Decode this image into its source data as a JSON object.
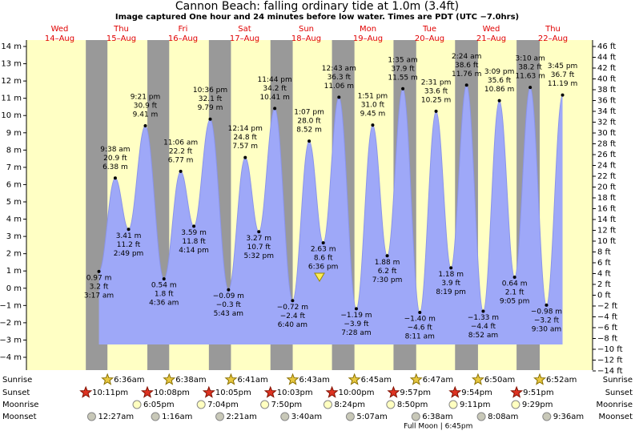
{
  "chart_data": {
    "type": "tide",
    "title": "Cannon Beach: falling  ordinary tide at 1.0m (3.4ft)",
    "subtitle": "Image captured One hour and 24 minutes before low water. Times are PDT (UTC −7.0hrs)",
    "ylim": [
      -4,
      14
    ],
    "yticks": [
      {
        "value": -4,
        "label": "−4 m"
      },
      {
        "value": -3,
        "label": "−3 m"
      },
      {
        "value": -2,
        "label": "−2 m"
      },
      {
        "value": -1,
        "label": "−1 m"
      },
      {
        "value": 0,
        "label": "0 m"
      },
      {
        "value": 1,
        "label": "1 m"
      },
      {
        "value": 2,
        "label": "2 m"
      },
      {
        "value": 3,
        "label": "3 m"
      },
      {
        "value": 4,
        "label": "4 m"
      },
      {
        "value": 5,
        "label": "5 m"
      },
      {
        "value": 6,
        "label": "6 m"
      },
      {
        "value": 7,
        "label": "7 m"
      },
      {
        "value": 8,
        "label": "8 m"
      },
      {
        "value": 9,
        "label": "9 m"
      },
      {
        "value": 10,
        "label": "10 m"
      },
      {
        "value": 11,
        "label": "11 m"
      },
      {
        "value": 12,
        "label": "12 m"
      },
      {
        "value": 13,
        "label": "13 m"
      },
      {
        "value": 14,
        "label": "14 m"
      }
    ],
    "y2lim": [
      -14,
      46
    ],
    "y2ticks": [
      {
        "value": -14,
        "label": "−14 ft"
      },
      {
        "value": -12,
        "label": "−12 ft"
      },
      {
        "value": -10,
        "label": "−10 ft"
      },
      {
        "value": -8,
        "label": "−8 ft"
      },
      {
        "value": -6,
        "label": "−6 ft"
      },
      {
        "value": -4,
        "label": "−4 ft"
      },
      {
        "value": -2,
        "label": "−2 ft"
      },
      {
        "value": 0,
        "label": "0 ft"
      },
      {
        "value": 2,
        "label": "2 ft"
      },
      {
        "value": 4,
        "label": "4 ft"
      },
      {
        "value": 6,
        "label": "6 ft"
      },
      {
        "value": 8,
        "label": "8 ft"
      },
      {
        "value": 10,
        "label": "10 ft"
      },
      {
        "value": 12,
        "label": "12 ft"
      },
      {
        "value": 14,
        "label": "14 ft"
      },
      {
        "value": 16,
        "label": "16 ft"
      },
      {
        "value": 18,
        "label": "18 ft"
      },
      {
        "value": 20,
        "label": "20 ft"
      },
      {
        "value": 22,
        "label": "22 ft"
      },
      {
        "value": 24,
        "label": "24 ft"
      },
      {
        "value": 26,
        "label": "26 ft"
      },
      {
        "value": 28,
        "label": "28 ft"
      },
      {
        "value": 30,
        "label": "30 ft"
      },
      {
        "value": 32,
        "label": "32 ft"
      },
      {
        "value": 34,
        "label": "34 ft"
      },
      {
        "value": 36,
        "label": "36 ft"
      },
      {
        "value": 38,
        "label": "38 ft"
      },
      {
        "value": 40,
        "label": "40 ft"
      },
      {
        "value": 42,
        "label": "42 ft"
      },
      {
        "value": 44,
        "label": "44 ft"
      },
      {
        "value": 46,
        "label": "46 ft"
      }
    ],
    "row_labels": {
      "sunrise": "Sunrise",
      "sunset": "Sunset",
      "moonrise": "Moonrise",
      "moonset": "Moonset"
    },
    "days": [
      {
        "weekday": "Wed",
        "date": "14–Aug",
        "sunset": "10:11pm"
      },
      {
        "weekday": "Thu",
        "date": "15–Aug",
        "sunrise": "6:36am",
        "sunset": "10:08pm",
        "moonrise": "6:05pm",
        "moonset": "12:27am",
        "tides": [
          {
            "time": "3:17 am",
            "value": 0.97,
            "value_label": "0.97 m",
            "ft_label": "3.2 ft"
          },
          {
            "time": "9:38 am",
            "value": 6.38,
            "value_label": "6.38 m",
            "ft_label": "20.9 ft"
          },
          {
            "time": "2:49 pm",
            "value": 3.41,
            "value_label": "3.41 m",
            "ft_label": "11.2 ft"
          },
          {
            "time": "9:21 pm",
            "value": 9.41,
            "value_label": "9.41 m",
            "ft_label": "30.9 ft"
          }
        ]
      },
      {
        "weekday": "Fri",
        "date": "16–Aug",
        "sunrise": "6:38am",
        "sunset": "10:05pm",
        "moonrise": "7:04pm",
        "moonset": "1:16am",
        "tides": [
          {
            "time": "4:36 am",
            "value": 0.54,
            "value_label": "0.54 m",
            "ft_label": "1.8 ft"
          },
          {
            "time": "11:06 am",
            "value": 6.77,
            "value_label": "6.77 m",
            "ft_label": "22.2 ft"
          },
          {
            "time": "4:14 pm",
            "value": 3.59,
            "value_label": "3.59 m",
            "ft_label": "11.8 ft"
          },
          {
            "time": "10:36 pm",
            "value": 9.79,
            "value_label": "9.79 m",
            "ft_label": "32.1 ft"
          }
        ]
      },
      {
        "weekday": "Sat",
        "date": "17–Aug",
        "sunrise": "6:41am",
        "sunset": "10:03pm",
        "moonrise": "7:50pm",
        "moonset": "2:21am",
        "tides": [
          {
            "time": "5:43 am",
            "value": -0.09,
            "value_label": "−0.09 m",
            "ft_label": "−0.3 ft"
          },
          {
            "time": "12:14 pm",
            "value": 7.57,
            "value_label": "7.57 m",
            "ft_label": "24.8 ft"
          },
          {
            "time": "5:32 pm",
            "value": 3.27,
            "value_label": "3.27 m",
            "ft_label": "10.7 ft"
          },
          {
            "time": "11:44 pm",
            "value": 10.41,
            "value_label": "10.41 m",
            "ft_label": "34.2 ft"
          }
        ]
      },
      {
        "weekday": "Sun",
        "date": "18–Aug",
        "sunrise": "6:43am",
        "sunset": "10:00pm",
        "moonrise": "8:24pm",
        "moonset": "3:40am",
        "tides": [
          {
            "time": "6:40 am",
            "value": -0.72,
            "value_label": "−0.72 m",
            "ft_label": "−2.4 ft"
          },
          {
            "time": "1:07 pm",
            "value": 8.52,
            "value_label": "8.52 m",
            "ft_label": "28.0 ft"
          },
          {
            "time": "6:36 pm",
            "value": 2.63,
            "value_label": "2.63 m",
            "ft_label": "8.6 ft"
          }
        ]
      },
      {
        "weekday": "Mon",
        "date": "19–Aug",
        "sunrise": "6:45am",
        "sunset": "9:57pm",
        "moonrise": "8:50pm",
        "moonset": "5:07am",
        "tides": [
          {
            "time": "12:43 am",
            "value": 11.06,
            "value_label": "11.06 m",
            "ft_label": "36.3 ft"
          },
          {
            "time": "7:28 am",
            "value": -1.19,
            "value_label": "−1.19 m",
            "ft_label": "−3.9 ft"
          },
          {
            "time": "1:51 pm",
            "value": 9.45,
            "value_label": "9.45 m",
            "ft_label": "31.0 ft"
          },
          {
            "time": "7:30 pm",
            "value": 1.88,
            "value_label": "1.88 m",
            "ft_label": "6.2 ft"
          }
        ]
      },
      {
        "weekday": "Tue",
        "date": "20–Aug",
        "sunrise": "6:47am",
        "sunset": "9:54pm",
        "moonrise": "9:11pm",
        "moonset": "6:38am",
        "phase": "Full Moon | 6:45pm",
        "tides": [
          {
            "time": "1:35 am",
            "value": 11.55,
            "value_label": "11.55 m",
            "ft_label": "37.9 ft"
          },
          {
            "time": "8:11 am",
            "value": -1.4,
            "value_label": "−1.40 m",
            "ft_label": "−4.6 ft"
          },
          {
            "time": "2:31 pm",
            "value": 10.25,
            "value_label": "10.25 m",
            "ft_label": "33.6 ft"
          },
          {
            "time": "8:19 pm",
            "value": 1.18,
            "value_label": "1.18 m",
            "ft_label": "3.9 ft"
          }
        ]
      },
      {
        "weekday": "Wed",
        "date": "21–Aug",
        "sunrise": "6:50am",
        "sunset": "9:51pm",
        "moonrise": "9:29pm",
        "moonset": "8:08am",
        "tides": [
          {
            "time": "2:24 am",
            "value": 11.76,
            "value_label": "11.76 m",
            "ft_label": "38.6 ft"
          },
          {
            "time": "8:52 am",
            "value": -1.33,
            "value_label": "−1.33 m",
            "ft_label": "−4.4 ft"
          },
          {
            "time": "3:09 pm",
            "value": 10.86,
            "value_label": "10.86 m",
            "ft_label": "35.6 ft"
          },
          {
            "time": "9:05 pm",
            "value": 0.64,
            "value_label": "0.64 m",
            "ft_label": "2.1 ft"
          }
        ]
      },
      {
        "weekday": "Thu",
        "date": "22–Aug",
        "sunrise": "6:52am",
        "moonset": "9:36am",
        "tides": [
          {
            "time": "3:10 am",
            "value": 11.63,
            "value_label": "11.63 m",
            "ft_label": "38.2 ft"
          },
          {
            "time": "9:30 am",
            "value": -0.98,
            "value_label": "−0.98 m",
            "ft_label": "−3.2 ft"
          },
          {
            "time": "3:45 pm",
            "value": 11.19,
            "value_label": "11.19 m",
            "ft_label": "36.7 ft"
          }
        ]
      }
    ]
  }
}
